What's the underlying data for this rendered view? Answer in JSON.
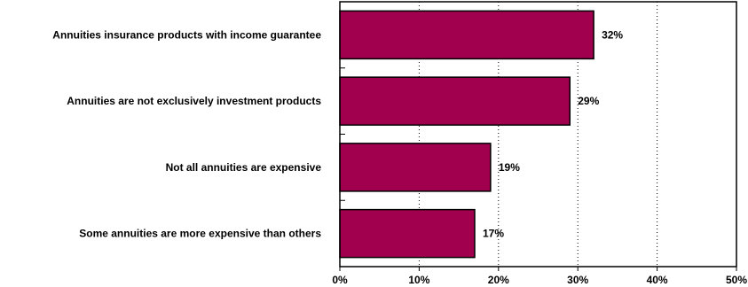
{
  "chart_data": {
    "type": "bar",
    "orientation": "horizontal",
    "title": "",
    "xlabel": "",
    "ylabel": "",
    "categories": [
      "Annuities insurance products with income guarantee",
      "Annuities are not exclusively investment products",
      "Not all annuities are expensive",
      "Some annuities are more expensive than others"
    ],
    "values": [
      32,
      29,
      19,
      17
    ],
    "value_labels": [
      "32%",
      "29%",
      "19%",
      "17%"
    ],
    "xlim": [
      0,
      50
    ],
    "x_ticks": [
      0,
      10,
      20,
      30,
      40,
      50
    ],
    "x_tick_labels": [
      "0%",
      "10%",
      "20%",
      "30%",
      "40%",
      "50%"
    ],
    "grid": true,
    "grid_style": "dotted vertical",
    "legend": "none",
    "colors": {
      "bar": "#a0004e",
      "bar_stroke": "#000000",
      "grid": "#000000"
    }
  }
}
